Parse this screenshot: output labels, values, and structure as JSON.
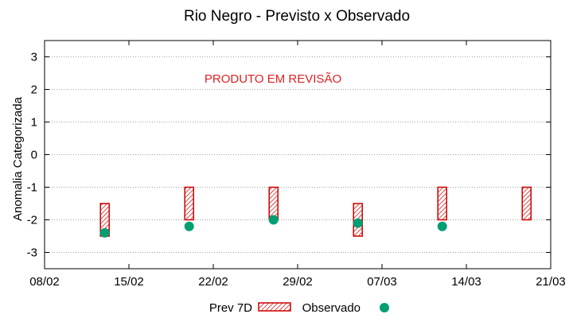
{
  "chart_data": {
    "type": "scatter",
    "title": "Rio Negro - Previsto x Observado",
    "xlabel": "",
    "ylabel": "Anomalia Categorizada",
    "annotation": {
      "text": "PRODUTO EM REVISÃO",
      "color": "#dd2222"
    },
    "xlim": [
      "2024-02-08",
      "2024-03-21"
    ],
    "ylim": [
      -3.5,
      3.5
    ],
    "x_ticks": [
      {
        "date": "2024-02-08",
        "label": "08/02"
      },
      {
        "date": "2024-02-15",
        "label": "15/02"
      },
      {
        "date": "2024-02-22",
        "label": "22/02"
      },
      {
        "date": "2024-02-29",
        "label": "29/02"
      },
      {
        "date": "2024-03-07",
        "label": "07/03"
      },
      {
        "date": "2024-03-14",
        "label": "14/03"
      },
      {
        "date": "2024-03-21",
        "label": "21/03"
      }
    ],
    "y_ticks": [
      {
        "value": 3,
        "label": "3"
      },
      {
        "value": 2,
        "label": "2"
      },
      {
        "value": 1,
        "label": "1"
      },
      {
        "value": 0,
        "label": "0"
      },
      {
        "value": -1,
        "label": "-1"
      },
      {
        "value": -2,
        "label": "-2"
      },
      {
        "value": -3,
        "label": "-3"
      }
    ],
    "grid": true,
    "legend_position": "bottom",
    "series": [
      {
        "name": "Prev 7D",
        "kind": "range-box",
        "color": "#cc0000",
        "points": [
          {
            "x": "2024-02-13",
            "low": -2.5,
            "high": -1.5
          },
          {
            "x": "2024-02-20",
            "low": -2.0,
            "high": -1.0
          },
          {
            "x": "2024-02-27",
            "low": -2.0,
            "high": -1.0
          },
          {
            "x": "2024-03-05",
            "low": -2.5,
            "high": -1.5
          },
          {
            "x": "2024-03-12",
            "low": -2.0,
            "high": -1.0
          },
          {
            "x": "2024-03-19",
            "low": -2.0,
            "high": -1.0
          }
        ]
      },
      {
        "name": "Observado",
        "kind": "point",
        "color": "#009e73",
        "points": [
          {
            "x": "2024-02-13",
            "y": -2.4
          },
          {
            "x": "2024-02-20",
            "y": -2.2
          },
          {
            "x": "2024-02-27",
            "y": -2.0
          },
          {
            "x": "2024-03-05",
            "y": -2.1
          },
          {
            "x": "2024-03-12",
            "y": -2.2
          }
        ]
      }
    ]
  }
}
